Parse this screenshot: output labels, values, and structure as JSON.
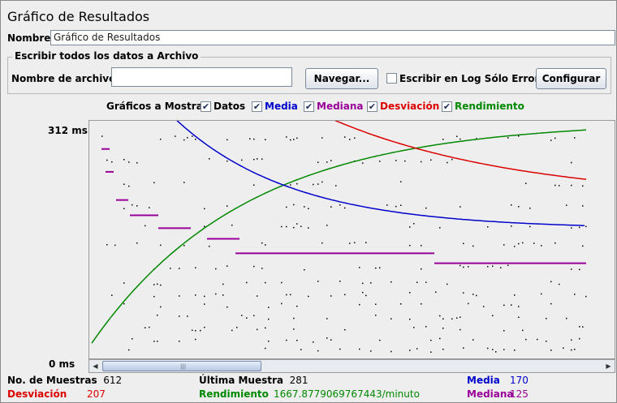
{
  "window": {
    "title": "Gráfico de Resultados"
  },
  "name_row": {
    "label": "Nombre:",
    "value": "Gráfico de Resultados"
  },
  "file_group": {
    "legend": "Escribir todos los datos a Archivo",
    "filename_label": "Nombre de archivo",
    "filename_value": "",
    "browse_button": "Navegar...",
    "errors_only_label": "Escribir en Log Sólo Errores",
    "errors_only_checked": false,
    "configure_button": "Configurar"
  },
  "display": {
    "label": "Gráficos a Mostrar",
    "options": [
      {
        "label": "Datos",
        "checked": true,
        "color": "#000000"
      },
      {
        "label": "Media",
        "checked": true,
        "color": "#0000cc"
      },
      {
        "label": "Mediana",
        "checked": true,
        "color": "#990099"
      },
      {
        "label": "Desviación",
        "checked": true,
        "color": "#dd0000"
      },
      {
        "label": "Rendimiento",
        "checked": true,
        "color": "#008800"
      }
    ]
  },
  "axis": {
    "y_max_label": "312 ms",
    "y_min_label": "0 ms"
  },
  "chart_data": {
    "type": "line",
    "xlabel": "",
    "ylabel": "",
    "ylim": [
      0,
      312
    ],
    "series_colors": {
      "data": "#000000",
      "average": "#0000cc",
      "median": "#990099",
      "deviation": "#dd0000",
      "throughput": "#008800"
    }
  },
  "stats": {
    "samples_label": "No. de Muestras",
    "samples_value": "612",
    "last_label": "Última Muestra",
    "last_value": "281",
    "average_label": "Media",
    "average_value": "170",
    "deviation_label": "Desviación",
    "deviation_value": "207",
    "throughput_label": "Rendimiento",
    "throughput_value": "1667.8779069767443/minuto",
    "median_label": "Mediana",
    "median_value": "125"
  }
}
